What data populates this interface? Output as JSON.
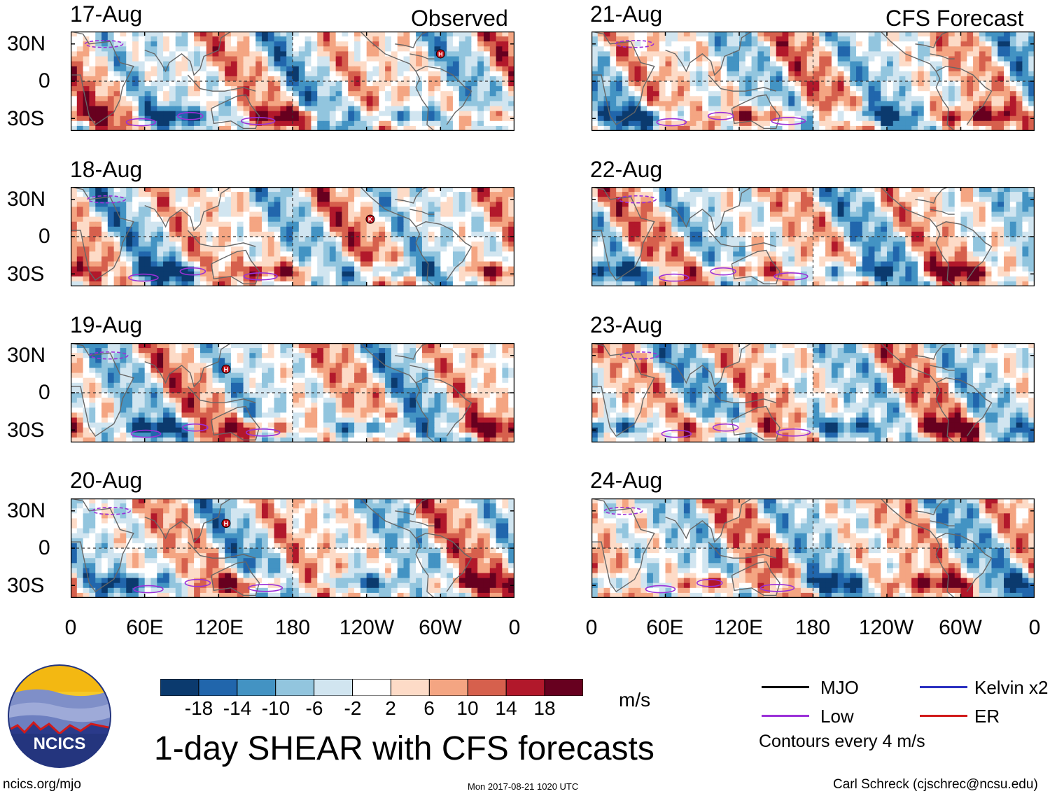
{
  "chart_data": {
    "type": "heatmap",
    "title": "1-day SHEAR with CFS forecasts",
    "columns": [
      {
        "title": "Observed",
        "dates": [
          "17-Aug",
          "18-Aug",
          "19-Aug",
          "20-Aug"
        ]
      },
      {
        "title": "CFS Forecast",
        "dates": [
          "21-Aug",
          "22-Aug",
          "23-Aug",
          "24-Aug"
        ]
      }
    ],
    "lat_ticks": [
      "30N",
      "0",
      "30S"
    ],
    "lat_values": [
      30,
      0,
      -30
    ],
    "lat_range": [
      -40,
      40
    ],
    "lon_ticks": [
      "0",
      "60E",
      "120E",
      "180",
      "120W",
      "60W",
      "0"
    ],
    "lon_values": [
      0,
      60,
      120,
      180,
      240,
      300,
      360
    ],
    "lon_range": [
      0,
      360
    ],
    "colorbar": {
      "levels": [
        -22,
        -18,
        -14,
        -10,
        -6,
        -2,
        2,
        6,
        10,
        14,
        18,
        22
      ],
      "tick_labels": [
        "-18",
        "-14",
        "-10",
        "-6",
        "-2",
        "2",
        "6",
        "10",
        "14",
        "18"
      ],
      "colors": [
        "#0b3a6e",
        "#2166ac",
        "#4393c3",
        "#92c5de",
        "#d1e5f0",
        "#ffffff",
        "#fddbc7",
        "#f4a582",
        "#d6604d",
        "#b2182b",
        "#67001f"
      ],
      "units": "m/s"
    },
    "storms": [
      {
        "panel": "17-Aug",
        "symbol": "H",
        "lon": 300,
        "lat": 22
      },
      {
        "panel": "18-Aug",
        "symbol": "K",
        "lon": 243,
        "lat": 14
      },
      {
        "panel": "19-Aug",
        "symbol": "H",
        "lon": 126,
        "lat": 19
      },
      {
        "panel": "20-Aug",
        "symbol": "H",
        "lon": 126,
        "lat": 20
      }
    ]
  },
  "legend": {
    "items": [
      {
        "label": "MJO",
        "color": "#000000"
      },
      {
        "label": "Low",
        "color": "#9b30d8"
      },
      {
        "label": "Kelvin x2",
        "color": "#2a2fc0"
      },
      {
        "label": "ER",
        "color": "#d11a1a"
      }
    ],
    "note": "Contours every 4 m/s"
  },
  "logo": {
    "text": "NCICS"
  },
  "footer": {
    "url": "ncics.org/mjo",
    "timestamp": "Mon 2017-08-21 1020 UTC",
    "credit": "Carl Schreck (cjschrec@ncsu.edu)"
  }
}
